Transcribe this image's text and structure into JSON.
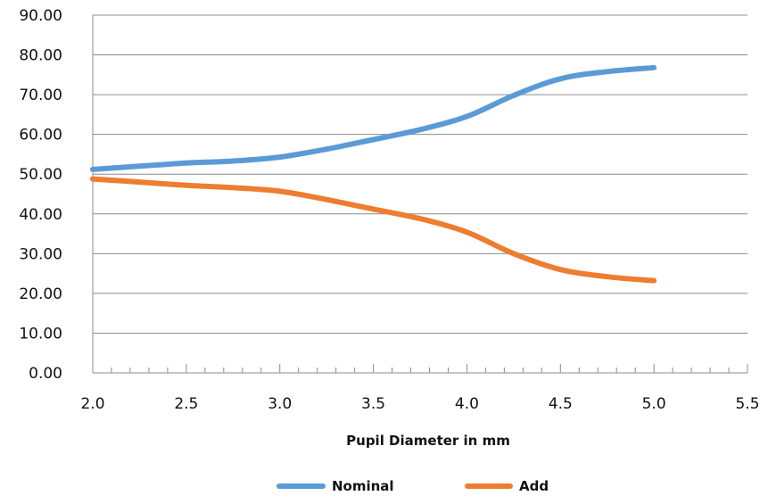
{
  "chart_data": {
    "type": "line",
    "xlabel": "Pupil Diameter in mm",
    "ylabel": "",
    "xlim": [
      2.0,
      5.5
    ],
    "ylim": [
      0,
      90
    ],
    "x_ticks": [
      "2.0",
      "2.5",
      "3.0",
      "3.5",
      "4.0",
      "4.5",
      "5.0",
      "5.5"
    ],
    "y_ticks": [
      "0.00",
      "10.00",
      "20.00",
      "30.00",
      "40.00",
      "50.00",
      "60.00",
      "70.00",
      "80.00",
      "90.00"
    ],
    "grid": "horizontal",
    "legend_position": "bottom",
    "x": [
      2.0,
      2.25,
      2.5,
      2.75,
      3.0,
      3.25,
      3.5,
      3.75,
      4.0,
      4.25,
      4.5,
      4.75,
      5.0
    ],
    "series": [
      {
        "name": "Nominal",
        "color": "#5B9BD5",
        "values": [
          51.2,
          52.0,
          52.8,
          53.3,
          54.3,
          56.3,
          58.7,
          61.2,
          64.5,
          69.8,
          74.0,
          75.8,
          76.8
        ]
      },
      {
        "name": "Add",
        "color": "#ED7D31",
        "values": [
          48.8,
          48.0,
          47.2,
          46.6,
          45.7,
          43.6,
          41.2,
          38.8,
          35.4,
          30.0,
          26.0,
          24.2,
          23.2
        ]
      }
    ]
  }
}
